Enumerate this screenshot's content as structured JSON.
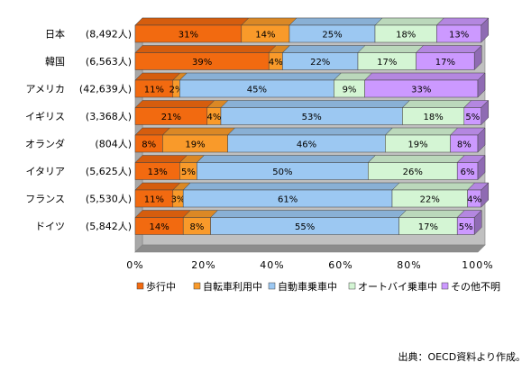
{
  "chart_data": {
    "type": "bar",
    "orientation": "horizontal",
    "stacked": "percent",
    "categories": [
      "日本",
      "韓国",
      "アメリカ",
      "イギリス",
      "オランダ",
      "イタリア",
      "フランス",
      "ドイツ"
    ],
    "counts": [
      "(8,492人)",
      "(6,563人)",
      "(42,639人)",
      "(3,368人)",
      "(804人)",
      "(5,625人)",
      "(5,530人)",
      "(5,842人)"
    ],
    "series": [
      {
        "name": "歩行中",
        "color": "#f26a10",
        "values": [
          31,
          39,
          11,
          21,
          8,
          13,
          11,
          14
        ]
      },
      {
        "name": "自転車利用中",
        "color": "#f99a2a",
        "values": [
          14,
          4,
          2,
          4,
          19,
          5,
          3,
          8
        ]
      },
      {
        "name": "自動車乗車中",
        "color": "#9cc8f2",
        "values": [
          25,
          22,
          45,
          53,
          46,
          50,
          61,
          55
        ]
      },
      {
        "name": "オートバイ乗車中",
        "color": "#d4f5d4",
        "values": [
          18,
          17,
          9,
          18,
          19,
          26,
          22,
          17
        ]
      },
      {
        "name": "その他不明",
        "color": "#cc99ff",
        "values": [
          13,
          17,
          33,
          5,
          8,
          6,
          4,
          5
        ]
      }
    ],
    "value_labels": [
      [
        "31%",
        "14%",
        "25%",
        "18%",
        "13%"
      ],
      [
        "39%",
        "4%",
        "22%",
        "17%",
        "17%"
      ],
      [
        "11%",
        "2%",
        "45%",
        "9%",
        "33%"
      ],
      [
        "21%",
        "4%",
        "53%",
        "18%",
        "5%"
      ],
      [
        "8%",
        "19%",
        "46%",
        "19%",
        "8%"
      ],
      [
        "13%",
        "5%",
        "50%",
        "26%",
        "6%"
      ],
      [
        "11%",
        "3%",
        "61%",
        "22%",
        "4%"
      ],
      [
        "14%",
        "8%",
        "55%",
        "17%",
        "5%"
      ]
    ],
    "xticks": [
      "0%",
      "20%",
      "40%",
      "60%",
      "80%",
      "100%"
    ],
    "xlim": [
      0,
      100
    ],
    "grid": false,
    "legend_position": "bottom"
  },
  "source_note": "出典：OECD資料より作成。"
}
